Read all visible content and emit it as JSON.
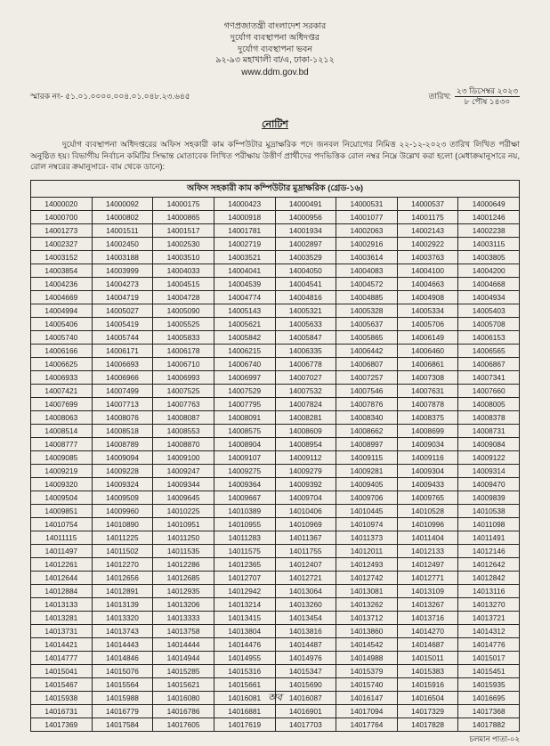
{
  "header": {
    "line1": "গণপ্রজাতন্ত্রী বাংলাদেশ সরকার",
    "line2": "দুর্যোগ ব্যবস্থাপনা অধিদপ্তর",
    "line3": "দুর্যোগ ব্যবস্থাপনা ভবন",
    "line4": "৯২-৯৩ মহাখালী বা/এ, ঢাকা-১২১২",
    "website": "www.ddm.gov.bd"
  },
  "meta": {
    "ref_label": "স্মারক নং-",
    "ref_value": "৫১.০১.০০০০.০০৪.০১.০৪৮.২৩.৬৪৫",
    "date_label": "তারিখ:",
    "date_gregorian": "২৩ ডিসেম্বর ২০২৩",
    "date_bangla": "৮ পৌষ ১৪৩০"
  },
  "title": "নোটিশ",
  "body": "দুর্যোগ ব্যবস্থাপনা অধিদপ্তরের অফিস সহকারী কাম কম্পিউটার মুদ্রাক্ষরিক পদে জনবল নিয়োগের নিমিত্ত ২২-১২-২০২৩ তারিখ লিখিত পরীক্ষা অনুষ্ঠিত হয়। বিভাগীয় নির্বাচন কমিটির সিদ্ধান্ত মোতাবেক লিখিত পরীক্ষায় উত্তীর্ণ প্রার্থীদের পদভিত্তিক রোল নম্বর নিম্নে উল্লেখ করা হলো (মেধাক্রমানুসারে নয়, রোল নম্বরের ক্রমানুসারে- বাম থেকে ডানে):",
  "table": {
    "caption": "অফিস সহকারী কাম কম্পিউটার মুদ্রাক্ষরিক (গ্রেড-১৬)",
    "columns": 8,
    "rows": [
      [
        "14000020",
        "14000092",
        "14000175",
        "14000423",
        "14000491",
        "14000531",
        "14000537",
        "14000649"
      ],
      [
        "14000700",
        "14000802",
        "14000865",
        "14000918",
        "14000956",
        "14001077",
        "14001175",
        "14001246"
      ],
      [
        "14001273",
        "14001511",
        "14001517",
        "14001781",
        "14001934",
        "14002063",
        "14002143",
        "14002238"
      ],
      [
        "14002327",
        "14002450",
        "14002530",
        "14002719",
        "14002897",
        "14002916",
        "14002922",
        "14003115"
      ],
      [
        "14003152",
        "14003188",
        "14003510",
        "14003521",
        "14003529",
        "14003614",
        "14003763",
        "14003805"
      ],
      [
        "14003854",
        "14003999",
        "14004033",
        "14004041",
        "14004050",
        "14004083",
        "14004100",
        "14004200"
      ],
      [
        "14004236",
        "14004273",
        "14004515",
        "14004539",
        "14004541",
        "14004572",
        "14004663",
        "14004668"
      ],
      [
        "14004669",
        "14004719",
        "14004728",
        "14004774",
        "14004816",
        "14004885",
        "14004908",
        "14004934"
      ],
      [
        "14004994",
        "14005027",
        "14005090",
        "14005143",
        "14005321",
        "14005328",
        "14005334",
        "14005403"
      ],
      [
        "14005406",
        "14005419",
        "14005525",
        "14005621",
        "14005633",
        "14005637",
        "14005706",
        "14005708"
      ],
      [
        "14005740",
        "14005744",
        "14005833",
        "14005842",
        "14005847",
        "14005865",
        "14006149",
        "14006153"
      ],
      [
        "14006166",
        "14006171",
        "14006178",
        "14006215",
        "14006335",
        "14006442",
        "14006460",
        "14006565"
      ],
      [
        "14006625",
        "14006693",
        "14006710",
        "14006740",
        "14006778",
        "14006807",
        "14006861",
        "14006867"
      ],
      [
        "14006933",
        "14006966",
        "14006993",
        "14006997",
        "14007027",
        "14007257",
        "14007308",
        "14007341"
      ],
      [
        "14007421",
        "14007499",
        "14007525",
        "14007529",
        "14007532",
        "14007546",
        "14007631",
        "14007660"
      ],
      [
        "14007699",
        "14007713",
        "14007763",
        "14007795",
        "14007824",
        "14007876",
        "14007878",
        "14008005"
      ],
      [
        "14008063",
        "14008076",
        "14008087",
        "14008091",
        "14008281",
        "14008340",
        "14008375",
        "14008378"
      ],
      [
        "14008514",
        "14008518",
        "14008553",
        "14008575",
        "14008609",
        "14008662",
        "14008699",
        "14008731"
      ],
      [
        "14008777",
        "14008789",
        "14008870",
        "14008904",
        "14008954",
        "14008997",
        "14009034",
        "14009084"
      ],
      [
        "14009085",
        "14009094",
        "14009100",
        "14009107",
        "14009112",
        "14009115",
        "14009116",
        "14009122"
      ],
      [
        "14009219",
        "14009228",
        "14009247",
        "14009275",
        "14009279",
        "14009281",
        "14009304",
        "14009314"
      ],
      [
        "14009320",
        "14009324",
        "14009344",
        "14009364",
        "14009392",
        "14009405",
        "14009433",
        "14009470"
      ],
      [
        "14009504",
        "14009509",
        "14009645",
        "14009667",
        "14009704",
        "14009706",
        "14009765",
        "14009839"
      ],
      [
        "14009851",
        "14009960",
        "14010225",
        "14010389",
        "14010406",
        "14010445",
        "14010528",
        "14010538"
      ],
      [
        "14010754",
        "14010890",
        "14010951",
        "14010955",
        "14010969",
        "14010974",
        "14010996",
        "14011098"
      ],
      [
        "14011115",
        "14011225",
        "14011250",
        "14011283",
        "14011367",
        "14011373",
        "14011404",
        "14011491"
      ],
      [
        "14011497",
        "14011502",
        "14011535",
        "14011575",
        "14011755",
        "14012011",
        "14012133",
        "14012146"
      ],
      [
        "14012261",
        "14012270",
        "14012286",
        "14012365",
        "14012407",
        "14012493",
        "14012497",
        "14012642"
      ],
      [
        "14012644",
        "14012656",
        "14012685",
        "14012707",
        "14012721",
        "14012742",
        "14012771",
        "14012842"
      ],
      [
        "14012884",
        "14012891",
        "14012935",
        "14012942",
        "14013064",
        "14013081",
        "14013109",
        "14013116"
      ],
      [
        "14013133",
        "14013139",
        "14013206",
        "14013214",
        "14013260",
        "14013262",
        "14013267",
        "14013270"
      ],
      [
        "14013281",
        "14013320",
        "14013333",
        "14013415",
        "14013454",
        "14013712",
        "14013716",
        "14013721"
      ],
      [
        "14013731",
        "14013743",
        "14013758",
        "14013804",
        "14013816",
        "14013860",
        "14014270",
        "14014312"
      ],
      [
        "14014421",
        "14014443",
        "14014444",
        "14014476",
        "14014487",
        "14014542",
        "14014687",
        "14014776"
      ],
      [
        "14014777",
        "14014846",
        "14014944",
        "14014955",
        "14014976",
        "14014988",
        "14015011",
        "14015017"
      ],
      [
        "14015041",
        "14015076",
        "14015285",
        "14015316",
        "14015347",
        "14015379",
        "14015383",
        "14015451"
      ],
      [
        "14015467",
        "14015564",
        "14015621",
        "14015661",
        "14015690",
        "14015740",
        "14015916",
        "14015935"
      ],
      [
        "14015938",
        "14015988",
        "14016080",
        "14016081",
        "14016087",
        "14016147",
        "14016504",
        "14016695"
      ],
      [
        "14016731",
        "14016779",
        "14016786",
        "14016881",
        "14016901",
        "14017094",
        "14017329",
        "14017368"
      ],
      [
        "14017369",
        "14017584",
        "14017605",
        "14017619",
        "14017703",
        "14017764",
        "14017828",
        "14017882"
      ]
    ]
  },
  "footer": {
    "page_note": "চলমান পাতা-০২",
    "sig": "অব"
  }
}
